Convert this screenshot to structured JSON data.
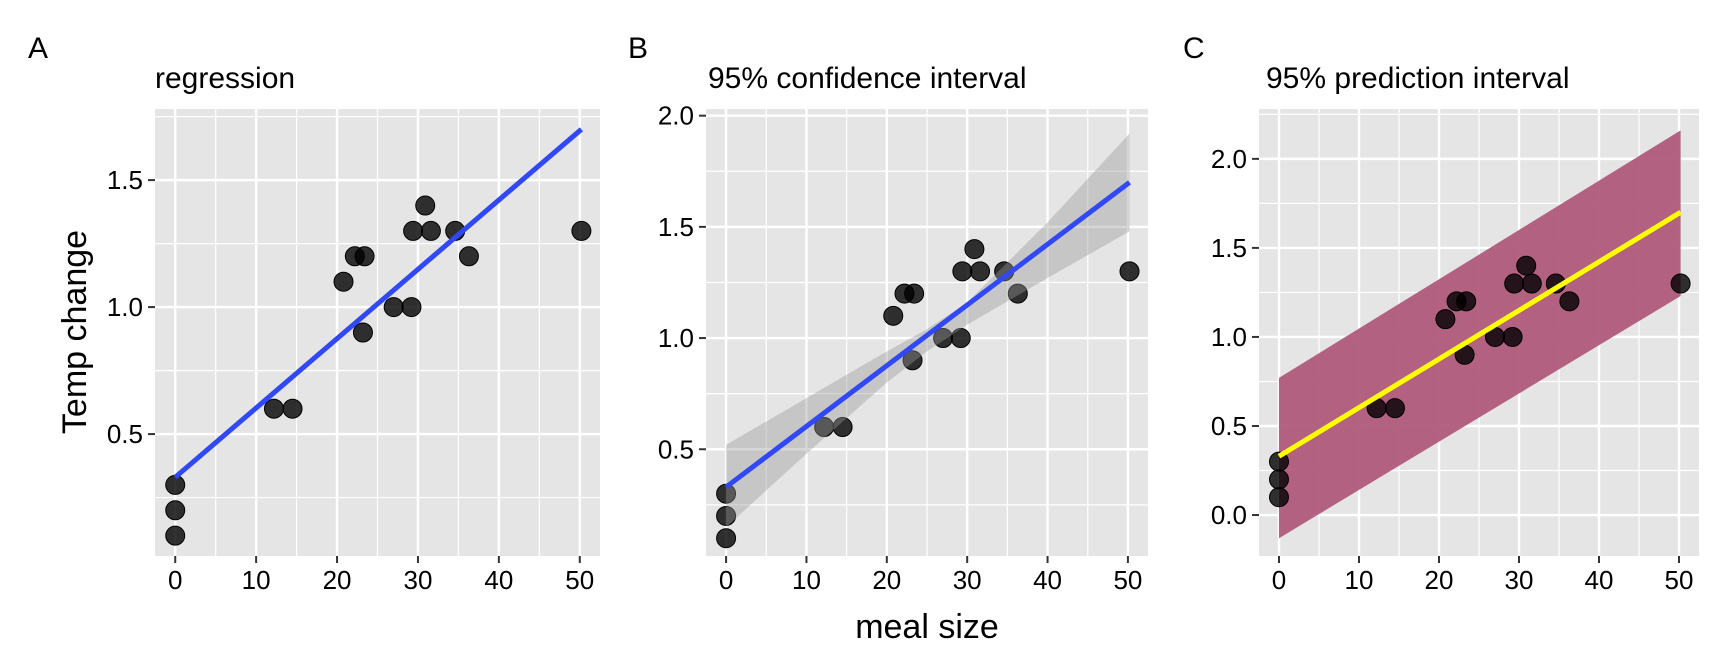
{
  "figure": {
    "shared_xlabel": "meal size",
    "shared_ylabel": "Temp change"
  },
  "colors": {
    "panel_bg": "#e5e5e5",
    "grid": "#ffffff",
    "point_fill": "#000000",
    "regression_line_blue": "#3048f5",
    "ci_band": "#999999",
    "pi_band": "#b05a7a",
    "pi_line_yellow": "#ffff00",
    "text": "#000000",
    "tick": "#333333"
  },
  "chart_data": [
    {
      "type": "scatter",
      "panel_label": "A",
      "title": "regression",
      "xlabel": "",
      "ylabel": "Temp change",
      "xlim": [
        -2.5,
        52.5
      ],
      "ylim": [
        0.02,
        1.78
      ],
      "xticks": [
        0,
        10,
        20,
        30,
        40,
        50
      ],
      "xtick_labels": [
        "0",
        "10",
        "20",
        "30",
        "40",
        "50"
      ],
      "yticks": [
        0.5,
        1.0,
        1.5
      ],
      "ytick_labels": [
        "0.5",
        "1.0",
        "1.5"
      ],
      "grid": true,
      "points": {
        "x": [
          0,
          0,
          0,
          12.2,
          14.5,
          20.8,
          22.2,
          23.4,
          23.2,
          27.0,
          29.2,
          29.4,
          30.9,
          31.6,
          34.6,
          36.3,
          50.2
        ],
        "y": [
          0.1,
          0.2,
          0.3,
          0.6,
          0.6,
          1.1,
          1.2,
          1.2,
          0.9,
          1.0,
          1.0,
          1.3,
          1.4,
          1.3,
          1.3,
          1.2,
          1.3
        ]
      },
      "fit_line": {
        "x": [
          0,
          50.2
        ],
        "y": [
          0.33,
          1.7
        ]
      },
      "band": null
    },
    {
      "type": "scatter",
      "panel_label": "B",
      "title": "95% confidence interval",
      "xlabel": "meal size",
      "ylabel": "",
      "xlim": [
        -2.5,
        52.5
      ],
      "ylim": [
        0.02,
        2.03
      ],
      "xticks": [
        0,
        10,
        20,
        30,
        40,
        50
      ],
      "xtick_labels": [
        "0",
        "10",
        "20",
        "30",
        "40",
        "50"
      ],
      "yticks": [
        0.5,
        1.0,
        1.5,
        2.0
      ],
      "ytick_labels": [
        "0.5",
        "1.0",
        "1.5",
        "2.0"
      ],
      "grid": true,
      "points": {
        "x": [
          0,
          0,
          0,
          12.2,
          14.5,
          20.8,
          22.2,
          23.4,
          23.2,
          27.0,
          29.2,
          29.4,
          30.9,
          31.6,
          34.6,
          36.3,
          50.2
        ],
        "y": [
          0.1,
          0.2,
          0.3,
          0.6,
          0.6,
          1.1,
          1.2,
          1.2,
          0.9,
          1.0,
          1.0,
          1.3,
          1.4,
          1.3,
          1.3,
          1.2,
          1.3
        ]
      },
      "fit_line": {
        "x": [
          0,
          50.2
        ],
        "y": [
          0.33,
          1.7
        ]
      },
      "band": {
        "name": "95% confidence interval",
        "x": [
          0,
          10,
          20,
          25,
          30,
          40,
          50.2
        ],
        "upper": [
          0.52,
          0.73,
          0.94,
          1.04,
          1.16,
          1.52,
          1.92
        ],
        "lower": [
          0.15,
          0.48,
          0.8,
          0.94,
          1.06,
          1.27,
          1.48
        ]
      }
    },
    {
      "type": "scatter",
      "panel_label": "C",
      "title": "95% prediction interval",
      "xlabel": "",
      "ylabel": "",
      "xlim": [
        -2.5,
        52.5
      ],
      "ylim": [
        -0.23,
        2.28
      ],
      "xticks": [
        0,
        10,
        20,
        30,
        40,
        50
      ],
      "xtick_labels": [
        "0",
        "10",
        "20",
        "30",
        "40",
        "50"
      ],
      "yticks": [
        0.0,
        0.5,
        1.0,
        1.5,
        2.0
      ],
      "ytick_labels": [
        "0.0",
        "0.5",
        "1.0",
        "1.5",
        "2.0"
      ],
      "grid": true,
      "points": {
        "x": [
          0,
          0,
          0,
          12.2,
          14.5,
          20.8,
          22.2,
          23.4,
          23.2,
          27.0,
          29.2,
          29.4,
          30.9,
          31.6,
          34.6,
          36.3,
          50.2
        ],
        "y": [
          0.1,
          0.2,
          0.3,
          0.6,
          0.6,
          1.1,
          1.2,
          1.2,
          0.9,
          1.0,
          1.0,
          1.3,
          1.4,
          1.3,
          1.3,
          1.2,
          1.3
        ]
      },
      "fit_line": {
        "x": [
          0,
          50.2
        ],
        "y": [
          0.33,
          1.7
        ]
      },
      "band": {
        "name": "95% prediction interval",
        "x": [
          0,
          50.2
        ],
        "upper": [
          0.77,
          2.16
        ],
        "lower": [
          -0.13,
          1.23
        ]
      }
    }
  ]
}
